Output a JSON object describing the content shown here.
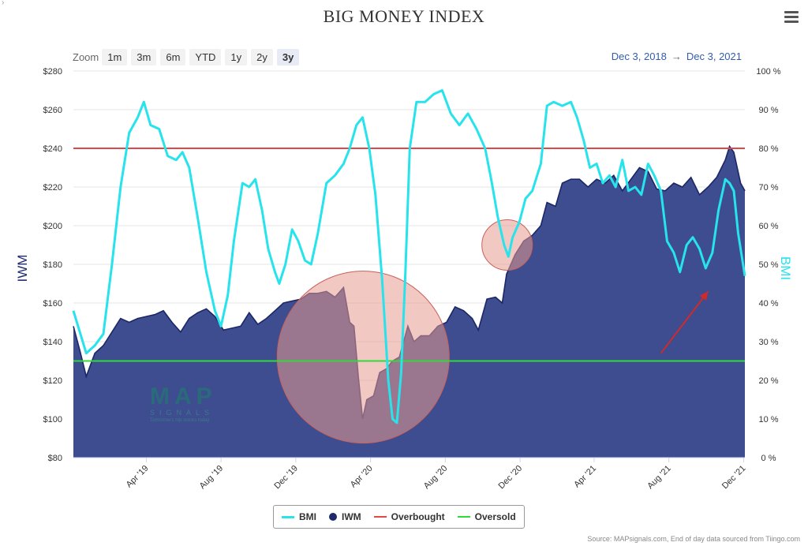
{
  "corner_mark": "›",
  "title": "BIG MONEY INDEX",
  "zoom": {
    "label": "Zoom",
    "buttons": [
      "1m",
      "3m",
      "6m",
      "YTD",
      "1y",
      "2y",
      "3y"
    ],
    "active": "3y"
  },
  "range": {
    "from": "Dec 3, 2018",
    "arrow": "→",
    "to": "Dec 3, 2021"
  },
  "logo": {
    "text": "MAP",
    "sub": "SIGNALS",
    "tagline": "Tomorrow's top stocks today"
  },
  "credit": "Source: MAPsignals.com, End of day data sourced from Tiingo.com",
  "chart_data": {
    "type": "line",
    "title": "BIG MONEY INDEX",
    "x_range": [
      "2018-12-03",
      "2021-12-03"
    ],
    "x_ticks": [
      "Apr '19",
      "Aug '19",
      "Dec '19",
      "Apr '20",
      "Aug '20",
      "Dec '20",
      "Apr '21",
      "Aug '21",
      "Dec '21"
    ],
    "left_axis": {
      "label": "IWM",
      "ticks": [
        "$80",
        "$100",
        "$120",
        "$140",
        "$160",
        "$180",
        "$200",
        "$220",
        "$240",
        "$260",
        "$280"
      ],
      "range": [
        80,
        280
      ]
    },
    "right_axis": {
      "label": "BMI",
      "ticks": [
        "0 %",
        "10 %",
        "20 %",
        "30 %",
        "40 %",
        "50 %",
        "60 %",
        "70 %",
        "80 %",
        "90 %",
        "100 %"
      ],
      "range": [
        0,
        100
      ]
    },
    "overbought": 80,
    "oversold": 25,
    "series": [
      {
        "name": "BMI",
        "axis": "right",
        "color": "#27e3ec",
        "points": [
          [
            "2018-12-03",
            38
          ],
          [
            "2018-12-24",
            27
          ],
          [
            "2019-01-07",
            29
          ],
          [
            "2019-01-21",
            32
          ],
          [
            "2019-02-04",
            50
          ],
          [
            "2019-02-18",
            70
          ],
          [
            "2019-03-04",
            84
          ],
          [
            "2019-03-18",
            88
          ],
          [
            "2019-03-28",
            92
          ],
          [
            "2019-04-08",
            86
          ],
          [
            "2019-04-22",
            85
          ],
          [
            "2019-05-06",
            78
          ],
          [
            "2019-05-20",
            77
          ],
          [
            "2019-05-30",
            79
          ],
          [
            "2019-06-10",
            75
          ],
          [
            "2019-06-24",
            62
          ],
          [
            "2019-07-08",
            48
          ],
          [
            "2019-07-22",
            38
          ],
          [
            "2019-08-01",
            34
          ],
          [
            "2019-08-12",
            42
          ],
          [
            "2019-08-22",
            56
          ],
          [
            "2019-09-05",
            71
          ],
          [
            "2019-09-16",
            70
          ],
          [
            "2019-09-26",
            72
          ],
          [
            "2019-10-07",
            64
          ],
          [
            "2019-10-17",
            54
          ],
          [
            "2019-10-28",
            48
          ],
          [
            "2019-11-04",
            45
          ],
          [
            "2019-11-14",
            50
          ],
          [
            "2019-11-25",
            59
          ],
          [
            "2019-12-05",
            56
          ],
          [
            "2019-12-16",
            51
          ],
          [
            "2019-12-26",
            50
          ],
          [
            "2020-01-06",
            58
          ],
          [
            "2020-01-20",
            71
          ],
          [
            "2020-02-03",
            73
          ],
          [
            "2020-02-17",
            76
          ],
          [
            "2020-02-27",
            80
          ],
          [
            "2020-03-09",
            86
          ],
          [
            "2020-03-19",
            88
          ],
          [
            "2020-03-30",
            80
          ],
          [
            "2020-04-09",
            68
          ],
          [
            "2020-04-20",
            46
          ],
          [
            "2020-04-30",
            20
          ],
          [
            "2020-05-07",
            10
          ],
          [
            "2020-05-14",
            9
          ],
          [
            "2020-05-21",
            22
          ],
          [
            "2020-05-28",
            48
          ],
          [
            "2020-06-04",
            80
          ],
          [
            "2020-06-15",
            92
          ],
          [
            "2020-06-29",
            92
          ],
          [
            "2020-07-13",
            94
          ],
          [
            "2020-07-27",
            95
          ],
          [
            "2020-08-10",
            89
          ],
          [
            "2020-08-24",
            86
          ],
          [
            "2020-09-07",
            89
          ],
          [
            "2020-09-21",
            85
          ],
          [
            "2020-10-05",
            80
          ],
          [
            "2020-10-15",
            72
          ],
          [
            "2020-10-26",
            62
          ],
          [
            "2020-11-05",
            55
          ],
          [
            "2020-11-12",
            52
          ],
          [
            "2020-11-19",
            57
          ],
          [
            "2020-11-30",
            61
          ],
          [
            "2020-12-10",
            67
          ],
          [
            "2020-12-21",
            69
          ],
          [
            "2021-01-04",
            76
          ],
          [
            "2021-01-14",
            91
          ],
          [
            "2021-01-25",
            92
          ],
          [
            "2021-02-08",
            91
          ],
          [
            "2021-02-22",
            92
          ],
          [
            "2021-03-04",
            88
          ],
          [
            "2021-03-15",
            82
          ],
          [
            "2021-03-25",
            75
          ],
          [
            "2021-04-05",
            76
          ],
          [
            "2021-04-15",
            71
          ],
          [
            "2021-04-26",
            73
          ],
          [
            "2021-05-06",
            70
          ],
          [
            "2021-05-17",
            77
          ],
          [
            "2021-05-27",
            69
          ],
          [
            "2021-06-07",
            70
          ],
          [
            "2021-06-17",
            68
          ],
          [
            "2021-06-28",
            76
          ],
          [
            "2021-07-08",
            73
          ],
          [
            "2021-07-19",
            69
          ],
          [
            "2021-07-29",
            56
          ],
          [
            "2021-08-09",
            53
          ],
          [
            "2021-08-19",
            48
          ],
          [
            "2021-08-30",
            55
          ],
          [
            "2021-09-09",
            57
          ],
          [
            "2021-09-20",
            54
          ],
          [
            "2021-09-30",
            49
          ],
          [
            "2021-10-11",
            53
          ],
          [
            "2021-10-21",
            64
          ],
          [
            "2021-11-01",
            72
          ],
          [
            "2021-11-08",
            71
          ],
          [
            "2021-11-15",
            69
          ],
          [
            "2021-11-22",
            58
          ],
          [
            "2021-12-03",
            47
          ]
        ]
      },
      {
        "name": "IWM",
        "axis": "left",
        "color": "#2b3c83",
        "points": [
          [
            "2018-12-03",
            148
          ],
          [
            "2018-12-14",
            135
          ],
          [
            "2018-12-24",
            122
          ],
          [
            "2019-01-07",
            134
          ],
          [
            "2019-01-21",
            138
          ],
          [
            "2019-02-04",
            145
          ],
          [
            "2019-02-18",
            152
          ],
          [
            "2019-03-04",
            150
          ],
          [
            "2019-03-18",
            152
          ],
          [
            "2019-04-01",
            153
          ],
          [
            "2019-04-15",
            154
          ],
          [
            "2019-04-29",
            156
          ],
          [
            "2019-05-13",
            150
          ],
          [
            "2019-05-27",
            145
          ],
          [
            "2019-06-10",
            152
          ],
          [
            "2019-06-24",
            155
          ],
          [
            "2019-07-08",
            157
          ],
          [
            "2019-07-22",
            153
          ],
          [
            "2019-08-05",
            146
          ],
          [
            "2019-08-19",
            147
          ],
          [
            "2019-09-02",
            148
          ],
          [
            "2019-09-16",
            155
          ],
          [
            "2019-09-30",
            149
          ],
          [
            "2019-10-14",
            152
          ],
          [
            "2019-10-28",
            156
          ],
          [
            "2019-11-11",
            160
          ],
          [
            "2019-11-25",
            161
          ],
          [
            "2019-12-09",
            162
          ],
          [
            "2019-12-23",
            165
          ],
          [
            "2020-01-06",
            165
          ],
          [
            "2020-01-20",
            166
          ],
          [
            "2020-02-03",
            163
          ],
          [
            "2020-02-17",
            168
          ],
          [
            "2020-02-27",
            150
          ],
          [
            "2020-03-05",
            148
          ],
          [
            "2020-03-12",
            122
          ],
          [
            "2020-03-19",
            100
          ],
          [
            "2020-03-26",
            110
          ],
          [
            "2020-04-06",
            112
          ],
          [
            "2020-04-16",
            124
          ],
          [
            "2020-04-27",
            126
          ],
          [
            "2020-05-07",
            130
          ],
          [
            "2020-05-18",
            132
          ],
          [
            "2020-06-01",
            148
          ],
          [
            "2020-06-11",
            140
          ],
          [
            "2020-06-22",
            143
          ],
          [
            "2020-07-06",
            143
          ],
          [
            "2020-07-20",
            148
          ],
          [
            "2020-08-03",
            150
          ],
          [
            "2020-08-17",
            158
          ],
          [
            "2020-08-31",
            156
          ],
          [
            "2020-09-14",
            152
          ],
          [
            "2020-09-24",
            146
          ],
          [
            "2020-10-08",
            162
          ],
          [
            "2020-10-22",
            163
          ],
          [
            "2020-11-02",
            160
          ],
          [
            "2020-11-09",
            175
          ],
          [
            "2020-11-23",
            185
          ],
          [
            "2020-12-07",
            192
          ],
          [
            "2020-12-21",
            195
          ],
          [
            "2021-01-04",
            200
          ],
          [
            "2021-01-14",
            212
          ],
          [
            "2021-01-28",
            210
          ],
          [
            "2021-02-08",
            222
          ],
          [
            "2021-02-22",
            224
          ],
          [
            "2021-03-08",
            224
          ],
          [
            "2021-03-22",
            220
          ],
          [
            "2021-04-05",
            224
          ],
          [
            "2021-04-19",
            222
          ],
          [
            "2021-05-03",
            226
          ],
          [
            "2021-05-17",
            218
          ],
          [
            "2021-05-31",
            224
          ],
          [
            "2021-06-14",
            230
          ],
          [
            "2021-06-28",
            228
          ],
          [
            "2021-07-12",
            219
          ],
          [
            "2021-07-26",
            218
          ],
          [
            "2021-08-09",
            222
          ],
          [
            "2021-08-23",
            220
          ],
          [
            "2021-09-06",
            225
          ],
          [
            "2021-09-20",
            216
          ],
          [
            "2021-10-04",
            220
          ],
          [
            "2021-10-18",
            225
          ],
          [
            "2021-11-01",
            234
          ],
          [
            "2021-11-08",
            241
          ],
          [
            "2021-11-15",
            238
          ],
          [
            "2021-11-26",
            222
          ],
          [
            "2021-12-03",
            218
          ]
        ]
      }
    ],
    "reference_lines": [
      {
        "name": "Overbought",
        "value": 80,
        "color": "#e04848"
      },
      {
        "name": "Oversold",
        "value": 25,
        "color": "#2ddc3a"
      }
    ],
    "legend": [
      {
        "name": "BMI",
        "kind": "line",
        "color": "#27e3ec"
      },
      {
        "name": "IWM",
        "kind": "dot",
        "color": "#1f2a6e"
      },
      {
        "name": "Overbought",
        "kind": "line",
        "color": "#e04848"
      },
      {
        "name": "Oversold",
        "kind": "line",
        "color": "#2ddc3a"
      }
    ],
    "legend_position": "bottom-center",
    "annotations": [
      {
        "type": "circle",
        "center": [
          "2020-03-20",
          26
        ],
        "note_color": "#e89a8f"
      },
      {
        "type": "circle",
        "center": [
          "2020-11-10",
          55
        ],
        "note_color": "#e89a8f"
      },
      {
        "type": "arrow",
        "from": [
          "2021-07-19",
          27
        ],
        "to": [
          "2021-10-04",
          43
        ],
        "color": "#d02a2a"
      }
    ]
  }
}
